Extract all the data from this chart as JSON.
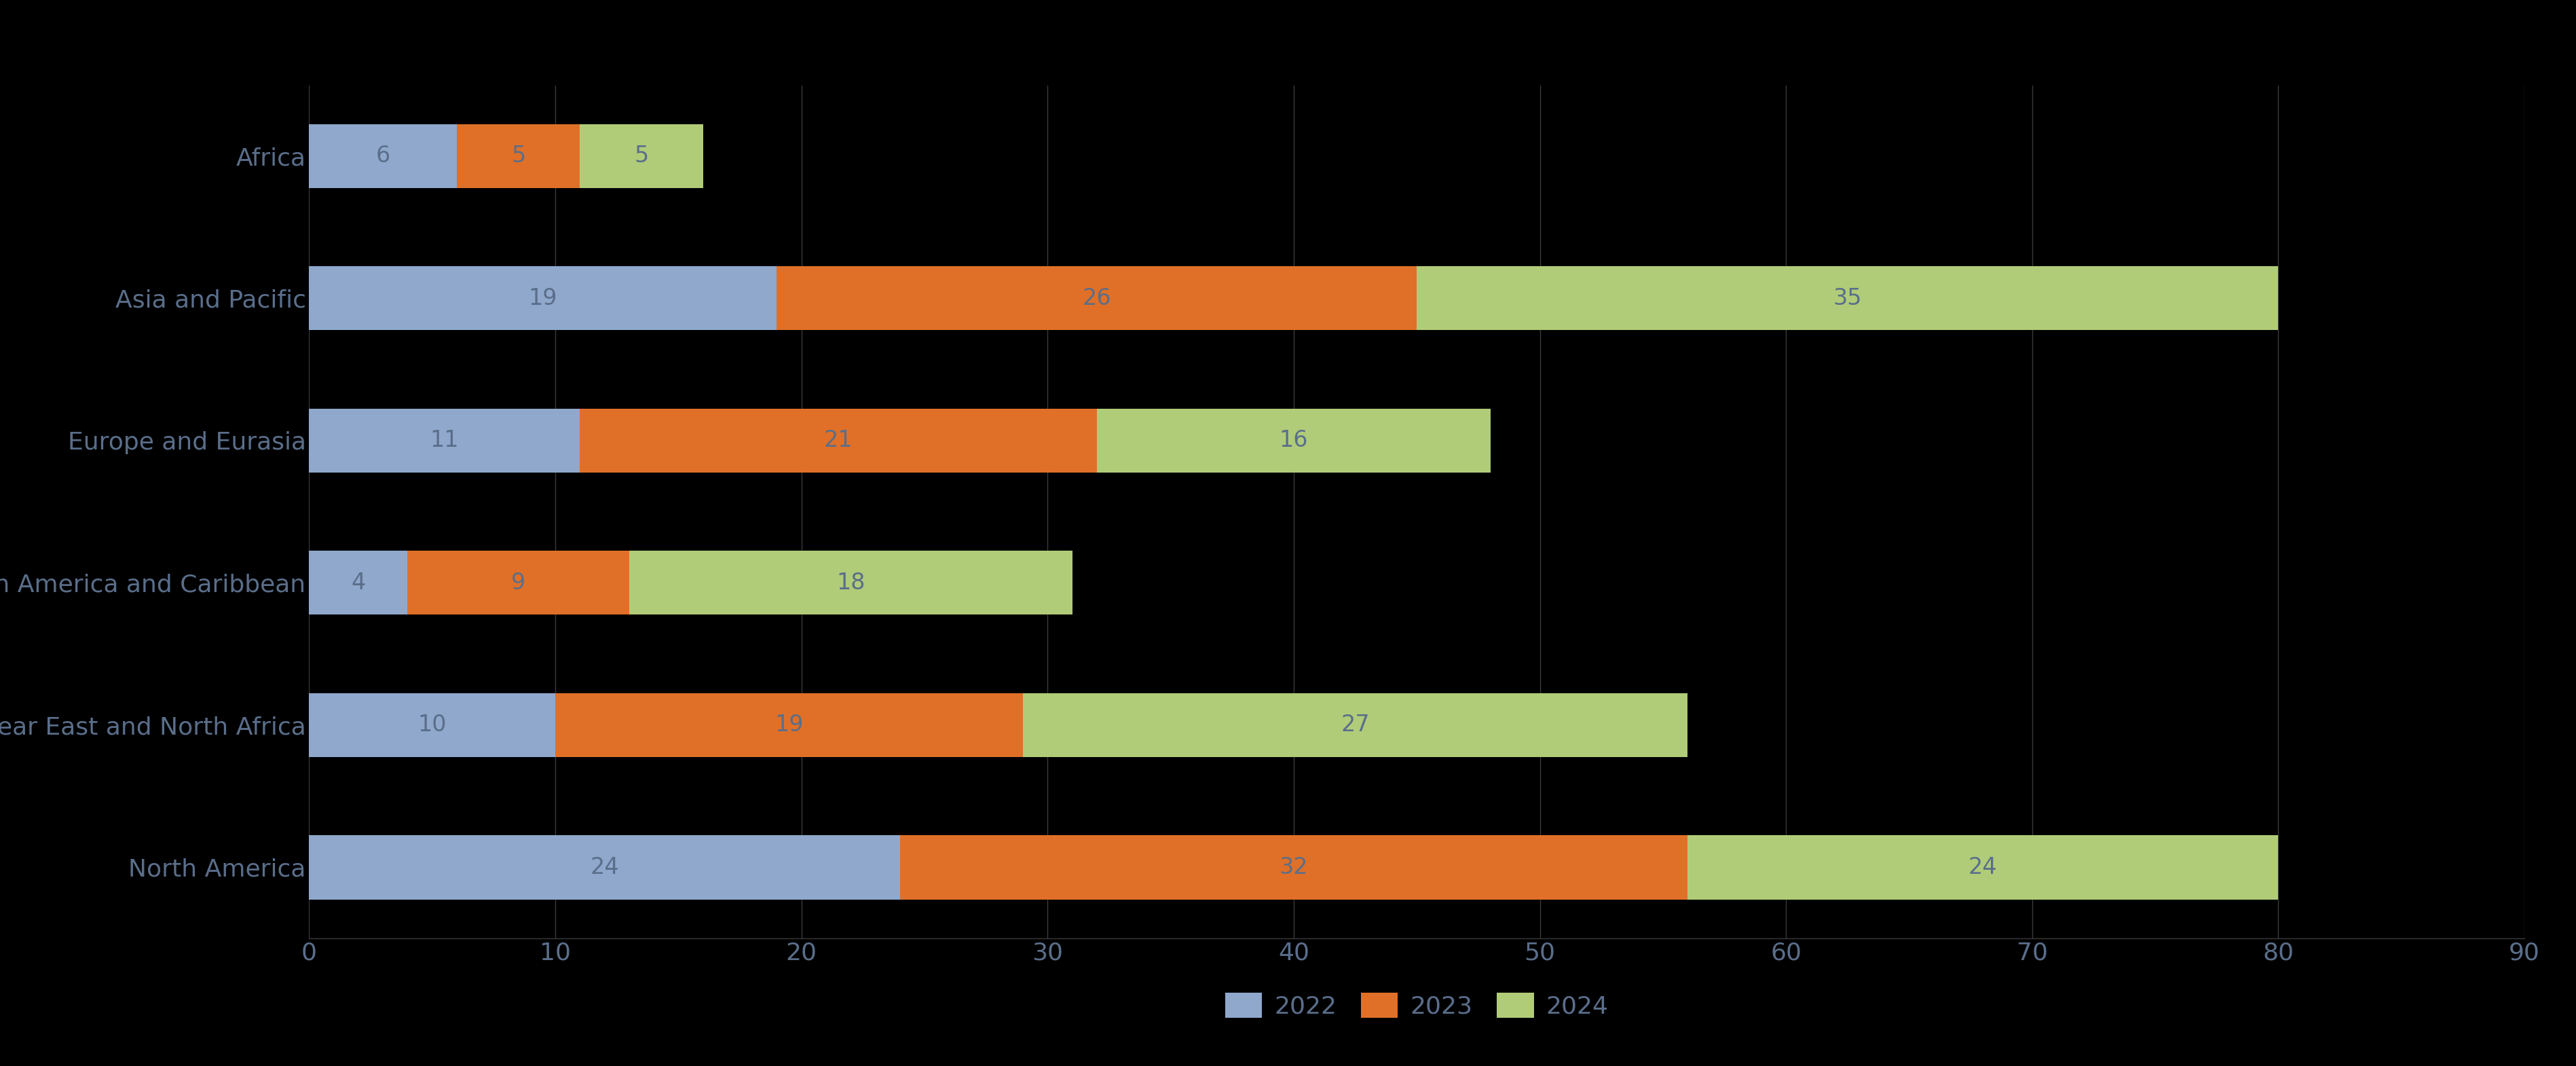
{
  "categories": [
    "Africa",
    "Asia and Pacific",
    "Europe and Eurasia",
    "Latin America and Caribbean",
    "Near East and North Africa",
    "North America"
  ],
  "series": {
    "2022": [
      6,
      19,
      11,
      4,
      10,
      24
    ],
    "2023": [
      5,
      26,
      21,
      9,
      19,
      32
    ],
    "2024": [
      5,
      35,
      16,
      18,
      27,
      24
    ]
  },
  "colors": {
    "2022": "#8fa8cc",
    "2023": "#e07028",
    "2024": "#b0cc78"
  },
  "background_color": "#000000",
  "text_color": "#5a6e8a",
  "grid_color": "#3a3a3a",
  "xlim": [
    0,
    90
  ],
  "xticks": [
    0,
    10,
    20,
    30,
    40,
    50,
    60,
    70,
    80,
    90
  ],
  "bar_height": 0.45,
  "label_fontsize": 26,
  "tick_fontsize": 26,
  "legend_fontsize": 26,
  "value_fontsize": 24
}
